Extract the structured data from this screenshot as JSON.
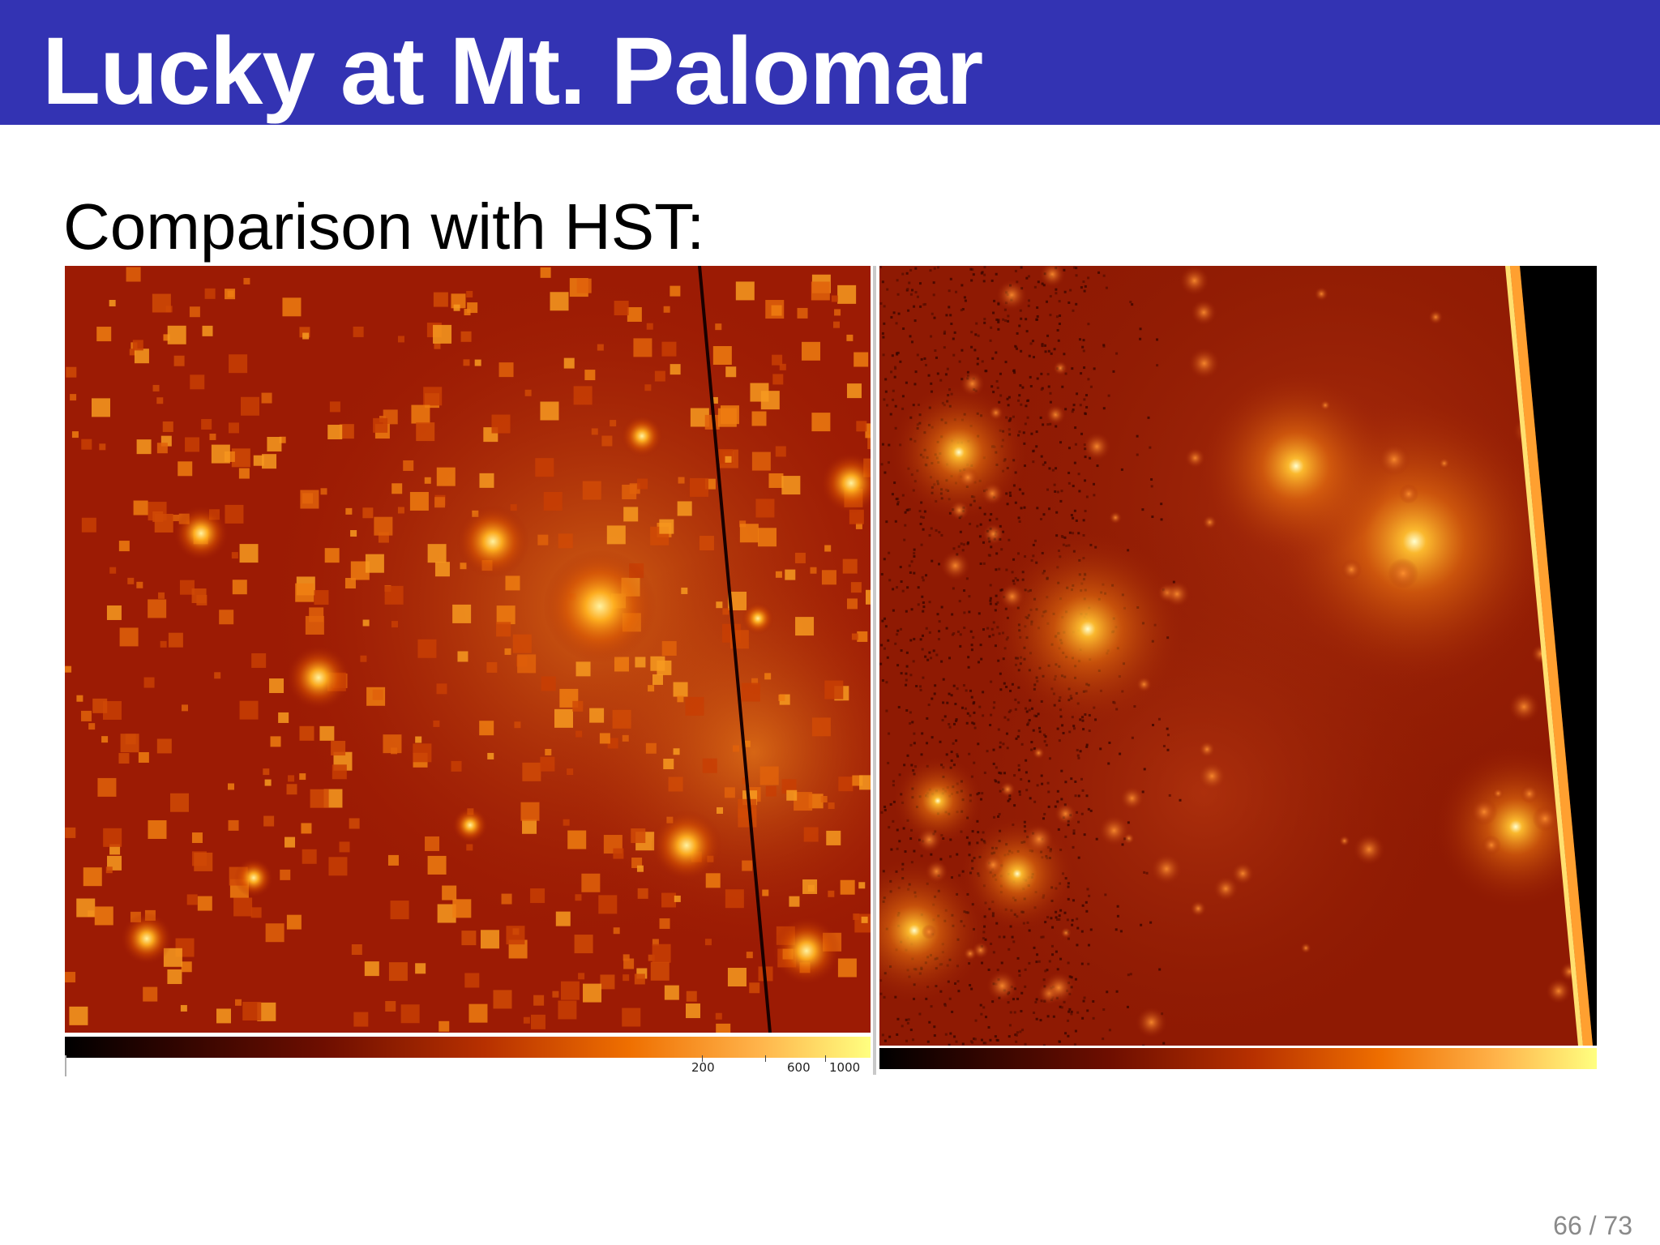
{
  "slide": {
    "title": "Lucky at Mt. Palomar",
    "subtitle": "Comparison with HST:",
    "page_number": "66 / 73"
  },
  "images": {
    "left": {
      "icon": "star-field-image",
      "colorbar_ticks": [
        "200",
        "600",
        "1000"
      ]
    },
    "right": {
      "icon": "star-field-image"
    }
  },
  "colors": {
    "header_bg": "#3333b3",
    "header_text": "#ffffff",
    "page_number": "#8a8a8a"
  }
}
